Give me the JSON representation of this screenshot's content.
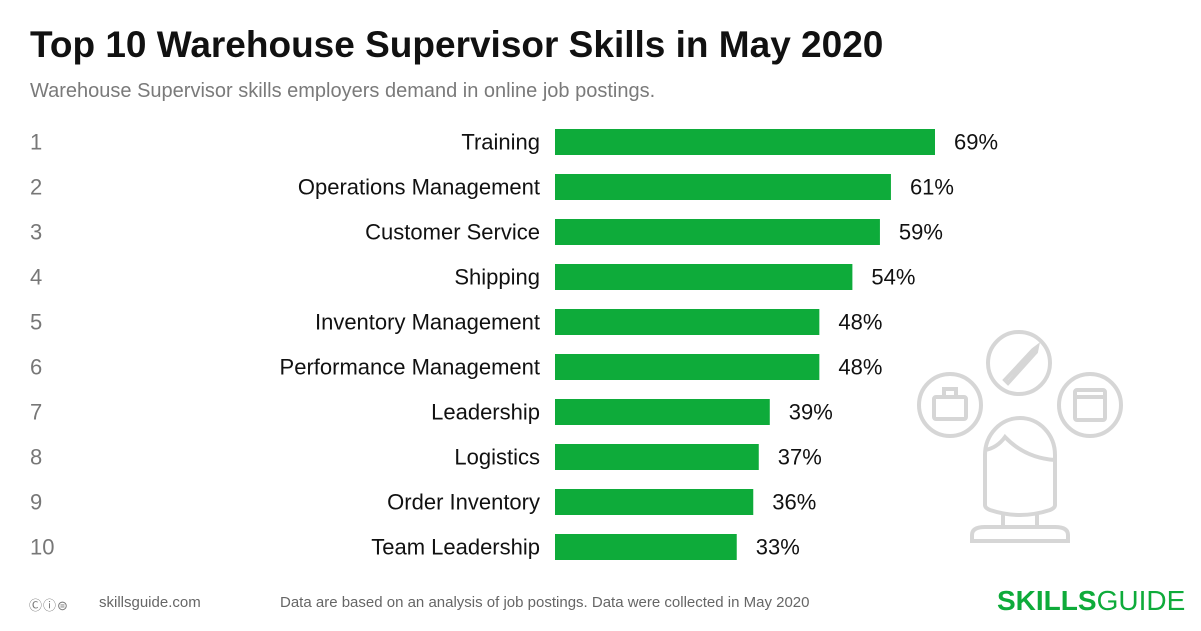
{
  "title": "Top 10 Warehouse Supervisor Skills in May 2020",
  "subtitle": "Warehouse Supervisor skills employers demand in online job postings.",
  "footer": {
    "license_icons": [
      "cc-icon",
      "attribution-icon",
      "no-derivatives-icon"
    ],
    "site": "skillsguide.com",
    "note": "Data are based on an analysis of job postings. Data were collected in May 2020",
    "logo_bold": "SKILLS",
    "logo_light": "GUIDE"
  },
  "colors": {
    "bar": "#0eab3a",
    "icon": "#d6d6d6",
    "logo": "#0eab3a"
  },
  "decoration_icon": "person-with-skills-icon",
  "chart_data": {
    "type": "bar",
    "orientation": "horizontal",
    "ranks": [
      "1",
      "2",
      "3",
      "4",
      "5",
      "6",
      "7",
      "8",
      "9",
      "10"
    ],
    "categories": [
      "Training",
      "Operations Management",
      "Customer Service",
      "Shipping",
      "Inventory Management",
      "Performance Management",
      "Leadership",
      "Logistics",
      "Order Inventory",
      "Team Leadership"
    ],
    "values": [
      69,
      61,
      59,
      54,
      48,
      48,
      39,
      37,
      36,
      33
    ],
    "value_labels": [
      "69%",
      "61%",
      "59%",
      "54%",
      "48%",
      "48%",
      "39%",
      "37%",
      "36%",
      "33%"
    ],
    "unit": "%",
    "xlim": [
      0,
      100
    ],
    "grid": false,
    "legend": "none"
  }
}
